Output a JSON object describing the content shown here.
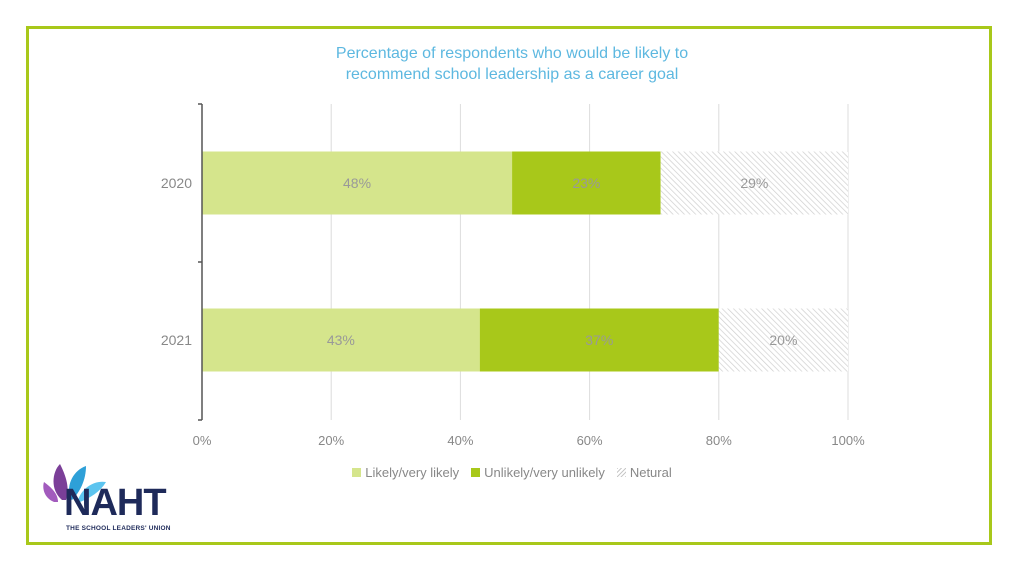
{
  "chart_data": {
    "type": "bar",
    "orientation": "horizontal",
    "stacked": true,
    "title": "Percentage of respondents who would be likely to\nrecommend school leadership as a career goal",
    "categories": [
      "2020",
      "2021"
    ],
    "series": [
      {
        "name": "Likely/very likely",
        "values": [
          48,
          43
        ],
        "labels": [
          "48%",
          "43%"
        ],
        "color": "#d5e58c",
        "pattern": "solid"
      },
      {
        "name": "Unlikely/very unlikely",
        "values": [
          23,
          37
        ],
        "labels": [
          "23%",
          "37%"
        ],
        "color": "#a8c81a",
        "pattern": "solid"
      },
      {
        "name": "Netural",
        "values": [
          29,
          20
        ],
        "labels": [
          "29%",
          "20%"
        ],
        "color": "#cccccc",
        "pattern": "hatched"
      }
    ],
    "xlim": [
      0,
      100
    ],
    "x_ticks": [
      "0%",
      "20%",
      "40%",
      "60%",
      "80%",
      "100%"
    ],
    "grid": true,
    "legend_position": "bottom"
  },
  "logo": {
    "name": "NAHT",
    "tagline": "THE SCHOOL LEADERS' UNION"
  },
  "colors": {
    "frame": "#a8c81a",
    "title": "#5db8e0",
    "text": "#888888"
  }
}
